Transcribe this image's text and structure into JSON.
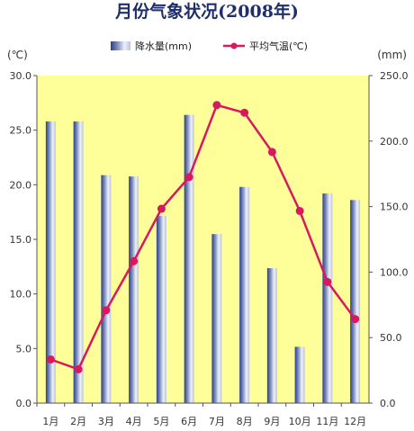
{
  "chart_data": {
    "type": "bar",
    "title": "月份气象状况(2008年)",
    "left_unit": "(℃)",
    "right_unit": "(mm)",
    "categories": [
      "1月",
      "2月",
      "3月",
      "4月",
      "5月",
      "6月",
      "7月",
      "8月",
      "9月",
      "10月",
      "11月",
      "12月"
    ],
    "series": [
      {
        "name": "降水量(mm)",
        "type": "bar",
        "axis": "right",
        "values": [
          215,
          215,
          174,
          173,
          143,
          220,
          129,
          165,
          103,
          43,
          160,
          155
        ]
      },
      {
        "name": "平均气温(℃)",
        "type": "line",
        "axis": "left",
        "values": [
          4.0,
          3.1,
          8.5,
          13.0,
          17.8,
          20.7,
          27.3,
          26.6,
          23.0,
          17.6,
          11.1,
          7.7
        ]
      }
    ],
    "left_axis": {
      "ylim": [
        0,
        30
      ],
      "ticks": [
        "0.0",
        "5.0",
        "10.0",
        "15.0",
        "20.0",
        "25.0",
        "30.0"
      ]
    },
    "right_axis": {
      "ylim": [
        0,
        250
      ],
      "ticks": [
        "0.0",
        "50.0",
        "100.0",
        "150.0",
        "200.0",
        "250.0"
      ]
    },
    "legend_position": "top",
    "colors": {
      "plot_background": "#ffff99",
      "bar_dark": "#2c3f86",
      "bar_light": "#eef1f8",
      "line": "#d8195e",
      "title": "#1f2f6e"
    }
  }
}
